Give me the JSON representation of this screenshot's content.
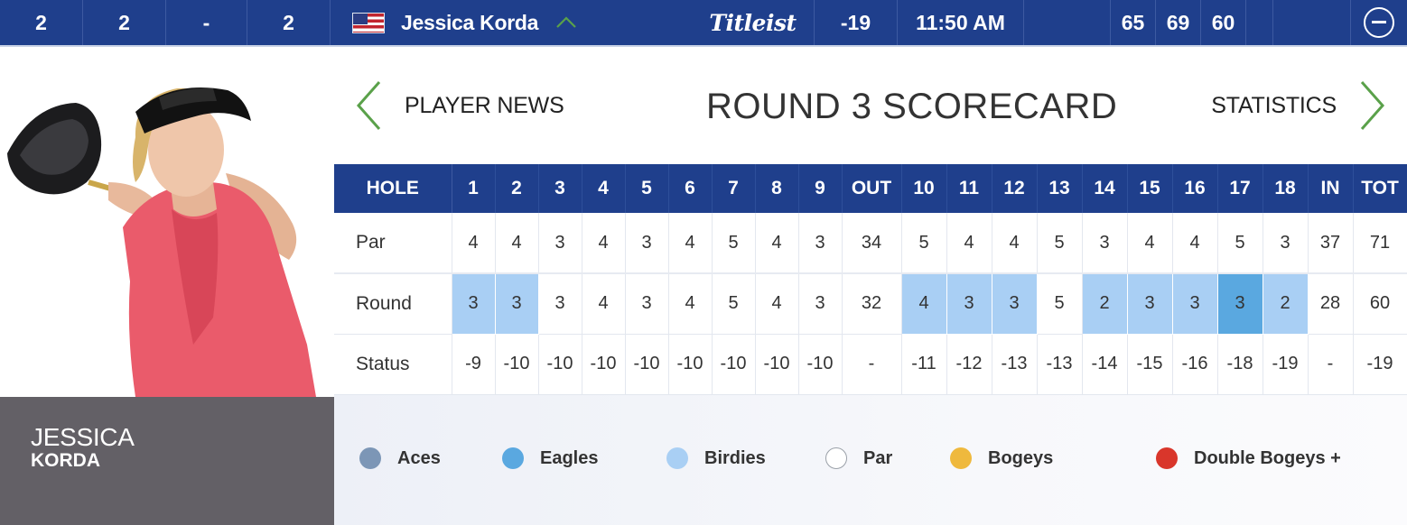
{
  "topbar": {
    "position": "2",
    "position_prev": "2",
    "movement": "-",
    "col4": "2",
    "player_name": "Jessica Korda",
    "sponsor": "Titleist",
    "score": "-19",
    "tee_time": "11:50 AM",
    "rounds": [
      "65",
      "69",
      "60"
    ]
  },
  "player": {
    "first_name": "JESSICA",
    "last_name": "KORDA"
  },
  "nav": {
    "left_label": "PLAYER NEWS",
    "title": "ROUND 3 SCORECARD",
    "right_label": "STATISTICS"
  },
  "scorecard": {
    "headers": [
      "HOLE",
      "1",
      "2",
      "3",
      "4",
      "5",
      "6",
      "7",
      "8",
      "9",
      "OUT",
      "10",
      "11",
      "12",
      "13",
      "14",
      "15",
      "16",
      "17",
      "18",
      "IN",
      "TOT"
    ],
    "rows": [
      {
        "label": "Par",
        "cells": [
          "4",
          "4",
          "3",
          "4",
          "3",
          "4",
          "5",
          "4",
          "3",
          "34",
          "5",
          "4",
          "4",
          "5",
          "3",
          "4",
          "4",
          "5",
          "3",
          "37",
          "71"
        ]
      },
      {
        "label": "Round",
        "cells": [
          "3",
          "3",
          "3",
          "4",
          "3",
          "4",
          "5",
          "4",
          "3",
          "32",
          "4",
          "3",
          "3",
          "5",
          "2",
          "3",
          "3",
          "3",
          "2",
          "28",
          "60"
        ],
        "results": [
          "birdie",
          "birdie",
          "par",
          "par",
          "par",
          "par",
          "par",
          "par",
          "par",
          "",
          "birdie",
          "birdie",
          "birdie",
          "par",
          "birdie",
          "birdie",
          "birdie",
          "eagle",
          "birdie",
          "",
          ""
        ]
      },
      {
        "label": "Status",
        "cells": [
          "-9",
          "-10",
          "-10",
          "-10",
          "-10",
          "-10",
          "-10",
          "-10",
          "-10",
          "-",
          "-11",
          "-12",
          "-13",
          "-13",
          "-14",
          "-15",
          "-16",
          "-18",
          "-19",
          "-",
          "-19"
        ]
      }
    ]
  },
  "legend": [
    {
      "label": "Aces",
      "color": "#7c96b6"
    },
    {
      "label": "Eagles",
      "color": "#5aa8e0"
    },
    {
      "label": "Birdies",
      "color": "#a9cff4"
    },
    {
      "label": "Par",
      "color": "#ffffff"
    },
    {
      "label": "Bogeys",
      "color": "#efb93d"
    },
    {
      "label": "Double Bogeys +",
      "color": "#d9362b"
    }
  ],
  "colors": {
    "brand_blue": "#1f3f8c",
    "accent_green": "#5aa14a",
    "name_plate": "#636066"
  },
  "icons": {
    "flag": "us-flag-icon",
    "expand": "chevron-up-icon",
    "prev": "chevron-left-icon",
    "next": "chevron-right-icon",
    "collapse": "minus-circle-icon"
  }
}
